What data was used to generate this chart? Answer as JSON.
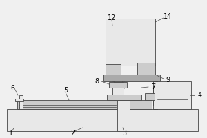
{
  "bg_color": "#f0f0f0",
  "line_color": "#444444",
  "fill_light": "#e8e8e8",
  "fill_medium": "#cccccc",
  "fill_dark": "#aaaaaa",
  "white": "#f8f8f8",
  "figsize": [
    3.0,
    2.0
  ],
  "dpi": 100
}
